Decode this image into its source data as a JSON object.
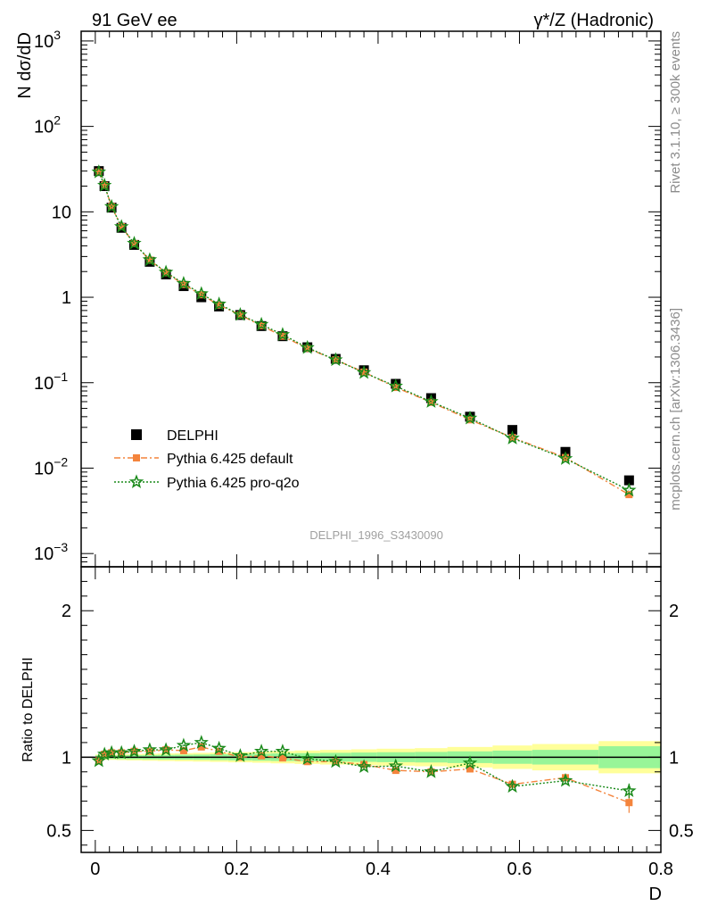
{
  "header": {
    "left_label": "91 GeV ee",
    "right_label": "γ*/Z (Hadronic)"
  },
  "side_labels": {
    "rivet": "Rivet 3.1.10, ≥ 300k events",
    "mcplots": "mcplots.cern.ch [arXiv:1306.3436]"
  },
  "analysis_label": "DELPHI_1996_S3430090",
  "colors": {
    "data": "#000000",
    "default": "#f4843c",
    "proq2o": "#1a8a1a",
    "band_inner": "#98f598",
    "band_outer": "#ffff9a"
  },
  "chart_data": [
    {
      "type": "scatter",
      "panel": "main",
      "ylabel": "N dσ/dD",
      "yscale": "log",
      "ylim": [
        0.0007,
        1300
      ],
      "xlim": [
        -0.02,
        0.8
      ],
      "y_ticks": [
        {
          "v": 0.001,
          "m": "10",
          "e": "−3"
        },
        {
          "v": 0.01,
          "m": "10",
          "e": "−2"
        },
        {
          "v": 0.1,
          "m": "10",
          "e": "−1"
        },
        {
          "v": 1,
          "m": "1",
          "e": ""
        },
        {
          "v": 10,
          "m": "10",
          "e": ""
        },
        {
          "v": 100,
          "m": "10",
          "e": "2"
        },
        {
          "v": 1000,
          "m": "10",
          "e": "3"
        }
      ],
      "legend": [
        "DELPHI",
        "Pythia 6.425 default",
        "Pythia 6.425 pro-q2o"
      ],
      "legend_position": "lower-left",
      "x": [
        0.005,
        0.013,
        0.023,
        0.037,
        0.055,
        0.077,
        0.1,
        0.125,
        0.15,
        0.175,
        0.205,
        0.235,
        0.265,
        0.3,
        0.34,
        0.38,
        0.425,
        0.475,
        0.53,
        0.59,
        0.665,
        0.755
      ],
      "series": [
        {
          "name": "DELPHI",
          "key": "data",
          "values": [
            30,
            20,
            11.2,
            6.5,
            4.1,
            2.6,
            1.85,
            1.35,
            1.0,
            0.78,
            0.62,
            0.46,
            0.35,
            0.26,
            0.19,
            0.14,
            0.097,
            0.066,
            0.04,
            0.028,
            0.0155,
            0.0072
          ]
        },
        {
          "name": "Pythia 6.425 default",
          "key": "default",
          "values": [
            29.3,
            20.4,
            11.5,
            6.7,
            4.25,
            2.72,
            1.94,
            1.41,
            1.07,
            0.81,
            0.62,
            0.465,
            0.35,
            0.252,
            0.185,
            0.133,
            0.088,
            0.059,
            0.0368,
            0.0228,
            0.0133,
            0.0049
          ]
        },
        {
          "name": "Pythia 6.425 pro-q2o",
          "key": "proq2o",
          "values": [
            29.2,
            20.4,
            11.5,
            6.7,
            4.27,
            2.74,
            1.96,
            1.45,
            1.1,
            0.83,
            0.625,
            0.48,
            0.365,
            0.257,
            0.185,
            0.131,
            0.091,
            0.06,
            0.0384,
            0.0224,
            0.0129,
            0.0055
          ]
        }
      ]
    },
    {
      "type": "scatter",
      "panel": "ratio",
      "ylabel": "Ratio to DELPHI",
      "xlabel": "D",
      "ylim": [
        0.35,
        2.3
      ],
      "xlim": [
        -0.02,
        0.8
      ],
      "y_ticks": [
        0.5,
        1,
        2
      ],
      "x_ticks": [
        0,
        0.2,
        0.4,
        0.6,
        0.8
      ],
      "x_edges": [
        0,
        0.01,
        0.016,
        0.03,
        0.044,
        0.066,
        0.088,
        0.112,
        0.138,
        0.162,
        0.188,
        0.222,
        0.248,
        0.282,
        0.318,
        0.362,
        0.398,
        0.452,
        0.498,
        0.562,
        0.618,
        0.712,
        0.8
      ],
      "band_inner_halfwidth": [
        0.012,
        0.012,
        0.012,
        0.013,
        0.014,
        0.015,
        0.016,
        0.017,
        0.018,
        0.02,
        0.022,
        0.024,
        0.026,
        0.028,
        0.03,
        0.032,
        0.034,
        0.036,
        0.04,
        0.045,
        0.05,
        0.075
      ],
      "band_outer_halfwidth": [
        0.018,
        0.018,
        0.018,
        0.02,
        0.022,
        0.024,
        0.026,
        0.028,
        0.03,
        0.032,
        0.035,
        0.038,
        0.042,
        0.046,
        0.05,
        0.054,
        0.058,
        0.062,
        0.07,
        0.08,
        0.09,
        0.11
      ],
      "series": [
        {
          "name": "Pythia 6.425 default",
          "key": "default",
          "values": [
            0.975,
            1.02,
            1.03,
            1.03,
            1.04,
            1.04,
            1.05,
            1.045,
            1.07,
            1.04,
            1.0,
            1.01,
            0.995,
            0.97,
            0.97,
            0.95,
            0.91,
            0.9,
            0.92,
            0.815,
            0.86,
            0.69
          ],
          "errors": [
            0.005,
            0.005,
            0.005,
            0.005,
            0.005,
            0.005,
            0.006,
            0.006,
            0.006,
            0.007,
            0.007,
            0.008,
            0.008,
            0.009,
            0.01,
            0.011,
            0.012,
            0.014,
            0.018,
            0.02,
            0.025,
            0.07
          ]
        },
        {
          "name": "Pythia 6.425 pro-q2o",
          "key": "proq2o",
          "values": [
            0.975,
            1.02,
            1.03,
            1.03,
            1.04,
            1.05,
            1.05,
            1.08,
            1.1,
            1.06,
            1.01,
            1.04,
            1.04,
            0.99,
            0.97,
            0.935,
            0.94,
            0.9,
            0.96,
            0.8,
            0.84,
            0.77
          ],
          "errors": [
            0.005,
            0.005,
            0.005,
            0.005,
            0.005,
            0.005,
            0.006,
            0.006,
            0.006,
            0.007,
            0.007,
            0.008,
            0.008,
            0.009,
            0.01,
            0.011,
            0.012,
            0.014,
            0.018,
            0.02,
            0.025,
            0.05
          ]
        }
      ]
    }
  ]
}
